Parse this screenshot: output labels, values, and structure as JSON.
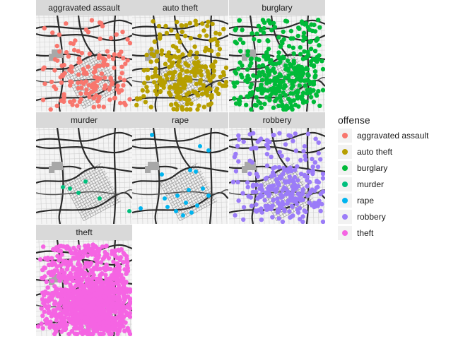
{
  "panels": [
    {
      "label": "aggravated assault",
      "color": "#F8766D",
      "density": 160
    },
    {
      "label": "auto theft",
      "color": "#B79F00",
      "density": 260
    },
    {
      "label": "burglary",
      "color": "#00BA38",
      "density": 360
    },
    {
      "label": "murder",
      "color": "#00BF7D",
      "density": 6
    },
    {
      "label": "rape",
      "color": "#00B4EF",
      "density": 18
    },
    {
      "label": "robbery",
      "color": "#9B7CF8",
      "density": 260
    },
    {
      "label": "theft",
      "color": "#F564E3",
      "density": 1200
    }
  ],
  "legend": {
    "title": "offense",
    "items": [
      {
        "label": "aggravated assault",
        "color": "#F8766D"
      },
      {
        "label": "auto theft",
        "color": "#B79F00"
      },
      {
        "label": "burglary",
        "color": "#00BA38"
      },
      {
        "label": "murder",
        "color": "#00BF7D"
      },
      {
        "label": "rape",
        "color": "#00B4EF"
      },
      {
        "label": "robbery",
        "color": "#9B7CF8"
      },
      {
        "label": "theft",
        "color": "#F564E3"
      }
    ]
  }
}
